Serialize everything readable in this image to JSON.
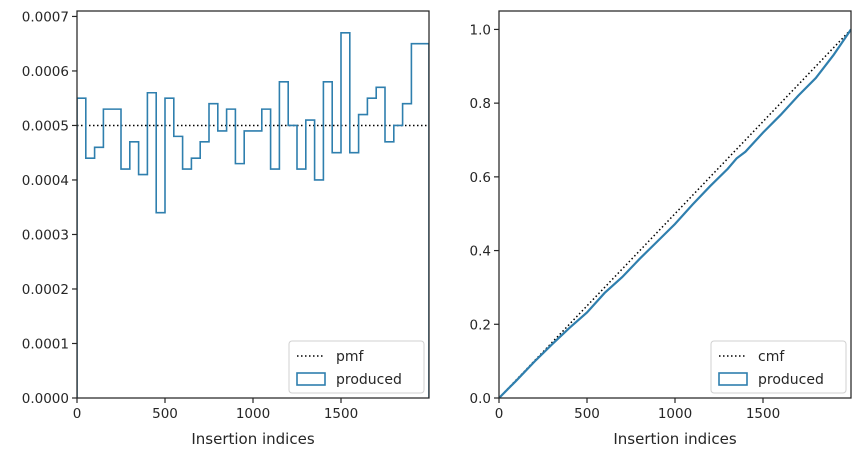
{
  "colors": {
    "series": "#2f7fae",
    "reference": "#000000",
    "axes": "#262626"
  },
  "chart_data": [
    {
      "type": "step",
      "xlabel": "Insertion indices",
      "ylabel": "",
      "xlim": [
        0,
        2000
      ],
      "ylim": [
        0,
        0.00071
      ],
      "xticks": [
        "0",
        "500",
        "1000",
        "1500"
      ],
      "yticks": [
        "0.0000",
        "0.0001",
        "0.0002",
        "0.0003",
        "0.0004",
        "0.0005",
        "0.0006",
        "0.0007"
      ],
      "legend_position": "lower right",
      "legend": [
        "pmf",
        "produced"
      ],
      "reference_line": {
        "name": "pmf",
        "style": "dotted",
        "y": 0.0005
      },
      "series": [
        {
          "name": "produced",
          "style": "histogram-step",
          "bin_width": 50,
          "bin_start": 0,
          "values": [
            0.00055,
            0.00044,
            0.00046,
            0.00053,
            0.00053,
            0.00042,
            0.00047,
            0.00041,
            0.00056,
            0.00034,
            0.00055,
            0.00048,
            0.00042,
            0.00044,
            0.00047,
            0.00054,
            0.00049,
            0.00053,
            0.00043,
            0.00049,
            0.00049,
            0.00053,
            0.00042,
            0.00058,
            0.0005,
            0.00042,
            0.00051,
            0.0004,
            0.00058,
            0.00045,
            0.00067,
            0.00045,
            0.00052,
            0.00055,
            0.00057,
            0.00047,
            0.0005,
            0.00054,
            0.00065,
            0.00065
          ]
        }
      ]
    },
    {
      "type": "line",
      "xlabel": "Insertion indices",
      "ylabel": "",
      "xlim": [
        0,
        2000
      ],
      "ylim": [
        0,
        1.05
      ],
      "xticks": [
        "0",
        "500",
        "1000",
        "1500"
      ],
      "yticks": [
        "0.0",
        "0.2",
        "0.4",
        "0.6",
        "0.8",
        "1.0"
      ],
      "legend_position": "lower right",
      "legend": [
        "cmf",
        "produced"
      ],
      "reference_line": {
        "name": "cmf",
        "style": "dotted",
        "x": [
          0,
          2000
        ],
        "y": [
          0,
          1.0
        ]
      },
      "series": [
        {
          "name": "produced",
          "x": [
            0,
            100,
            200,
            300,
            400,
            500,
            600,
            700,
            800,
            900,
            1000,
            1100,
            1200,
            1300,
            1350,
            1400,
            1500,
            1600,
            1700,
            1800,
            1900,
            2000
          ],
          "y": [
            0,
            0.048,
            0.098,
            0.145,
            0.19,
            0.232,
            0.285,
            0.328,
            0.378,
            0.425,
            0.472,
            0.525,
            0.575,
            0.622,
            0.65,
            0.668,
            0.72,
            0.768,
            0.82,
            0.868,
            0.93,
            1.0
          ]
        }
      ]
    }
  ]
}
